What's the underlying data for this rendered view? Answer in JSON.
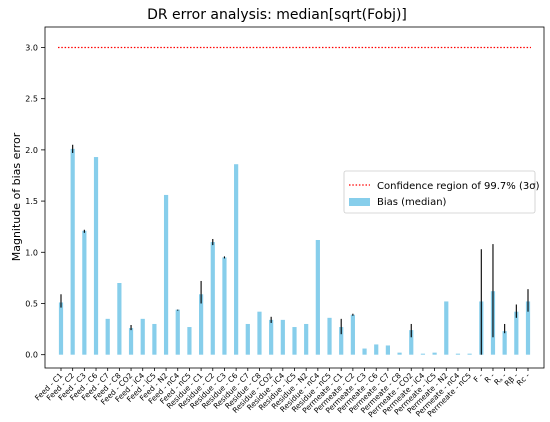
{
  "chart_data": {
    "type": "bar",
    "title": "DR error analysis: median[sqrt(Fobj)]",
    "xlabel": "",
    "ylabel": "Magnitude of bias error",
    "ylim": [
      -0.13,
      3.2
    ],
    "yticks": [
      0.0,
      0.5,
      1.0,
      1.5,
      2.0,
      2.5,
      3.0
    ],
    "grid": false,
    "legend_position": "center-right",
    "confidence_line": {
      "label": "Confidence region of 99.7% (3σ)",
      "value": 3.0,
      "color": "#ff0000"
    },
    "series": [
      {
        "name": "Bias (median)",
        "color": "#87ceeb"
      }
    ],
    "categories": [
      "Feed - C1",
      "Feed - C2",
      "Feed - C3",
      "Feed - C6",
      "Feed - C7",
      "Feed - C8",
      "Feed - CO2",
      "Feed - iC4",
      "Feed - iC5",
      "Feed - N2",
      "Feed - nC4",
      "Feed - nC5",
      "Residue - C1",
      "Residue - C2",
      "Residue - C3",
      "Residue - C6",
      "Residue - C7",
      "Residue - C8",
      "Residue - CO2",
      "Residue - iC4",
      "Residue - iC5",
      "Residue - N2",
      "Residue - nC4",
      "Residue - nC5",
      "Permeate - C1",
      "Permeate - C2",
      "Permeate - C3",
      "Permeate - C6",
      "Permeate - C7",
      "Permeate - C8",
      "Permeate - CO2",
      "Permeate - iC4",
      "Permeate - iC5",
      "Permeate - N2",
      "Permeate - nC4",
      "Permeate - nC5",
      "F -",
      "R -",
      "Rₐ -",
      "Rβ -",
      "Rᴄ -"
    ],
    "values": [
      0.51,
      2.01,
      1.21,
      1.93,
      0.35,
      0.7,
      0.26,
      0.35,
      0.3,
      1.56,
      0.44,
      0.27,
      0.59,
      1.1,
      0.95,
      1.86,
      0.3,
      0.42,
      0.34,
      0.34,
      0.27,
      0.3,
      1.12,
      0.36,
      0.27,
      0.39,
      0.06,
      0.1,
      0.09,
      0.02,
      0.24,
      0.01,
      0.02,
      0.52,
      0.01,
      0.01,
      0.52,
      0.62,
      0.23,
      0.42,
      0.52
    ],
    "error_low": [
      0.46,
      1.97,
      1.19,
      1.93,
      0.35,
      0.7,
      0.24,
      0.35,
      0.3,
      1.56,
      0.43,
      0.27,
      0.5,
      1.07,
      0.94,
      1.86,
      0.3,
      0.42,
      0.31,
      0.34,
      0.27,
      0.3,
      1.12,
      0.36,
      0.2,
      0.38,
      0.06,
      0.1,
      0.09,
      0.02,
      0.17,
      0.01,
      0.02,
      0.52,
      0.01,
      0.01,
      0.0,
      0.17,
      0.21,
      0.36,
      0.42
    ],
    "error_high": [
      0.59,
      2.05,
      1.22,
      1.93,
      0.35,
      0.7,
      0.29,
      0.35,
      0.3,
      1.56,
      0.44,
      0.27,
      0.72,
      1.13,
      0.96,
      1.86,
      0.3,
      0.42,
      0.37,
      0.34,
      0.27,
      0.3,
      1.12,
      0.36,
      0.35,
      0.4,
      0.06,
      0.1,
      0.09,
      0.02,
      0.3,
      0.01,
      0.02,
      0.52,
      0.01,
      0.01,
      1.03,
      1.08,
      0.3,
      0.49,
      0.64
    ]
  }
}
